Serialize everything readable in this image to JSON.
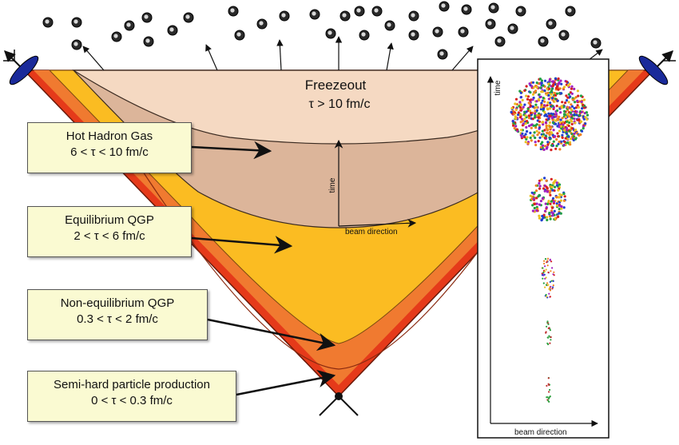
{
  "freezeout": {
    "title": "Freezeout",
    "range": "τ > 10 fm/c"
  },
  "stages": [
    {
      "name": "Hot Hadron Gas",
      "range": "6 < τ < 10 fm/c"
    },
    {
      "name": "Equilibrium QGP",
      "range": "2 < τ < 6 fm/c"
    },
    {
      "name": "Non-equilibrium QGP",
      "range": "0.3 < τ < 2 fm/c"
    },
    {
      "name": "Semi-hard particle production",
      "range": "0 < τ < 0.3 fm/c"
    }
  ],
  "inset_axes": {
    "time": "time",
    "beam": "beam direction"
  },
  "center_axes": {
    "time": "time",
    "beam": "beam direction"
  },
  "colors": {
    "freezeout_region": "#f5d9c2",
    "hadron_gas_region": "#dcb59a",
    "qgp_region": "#fbbc22",
    "nonequilibrium_region": "#f07a30",
    "semihard_region": "#e53a1a",
    "label_box": "#fafad2",
    "nucleus": "#1a2a9a"
  },
  "icons": [
    "hadron-particle-icon",
    "nucleus-icon",
    "collision-point-icon"
  ]
}
